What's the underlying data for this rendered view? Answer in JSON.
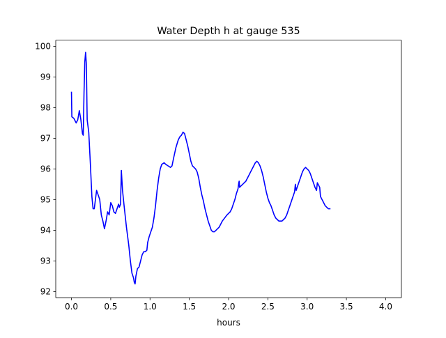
{
  "chart_data": {
    "type": "line",
    "title": "Water Depth h at gauge 535",
    "xlabel": "hours",
    "ylabel": "",
    "xlim": [
      -0.2,
      4.2
    ],
    "ylim": [
      91.8,
      100.2
    ],
    "x_ticks": [
      0.0,
      0.5,
      1.0,
      1.5,
      2.0,
      2.5,
      3.0,
      3.5,
      4.0
    ],
    "x_tick_labels": [
      "0.0",
      "0.5",
      "1.0",
      "1.5",
      "2.0",
      "2.5",
      "3.0",
      "3.5",
      "4.0"
    ],
    "y_ticks": [
      92,
      93,
      94,
      95,
      96,
      97,
      98,
      99,
      100
    ],
    "y_tick_labels": [
      "92",
      "93",
      "94",
      "95",
      "96",
      "97",
      "98",
      "99",
      "100"
    ],
    "grid": false,
    "legend": "none",
    "series": [
      {
        "color": "#0000ff",
        "points": [
          [
            0.0,
            98.5
          ],
          [
            0.005,
            97.7
          ],
          [
            0.03,
            97.65
          ],
          [
            0.06,
            97.5
          ],
          [
            0.08,
            97.6
          ],
          [
            0.1,
            97.9
          ],
          [
            0.12,
            97.6
          ],
          [
            0.14,
            97.15
          ],
          [
            0.15,
            97.1
          ],
          [
            0.16,
            98.5
          ],
          [
            0.17,
            99.5
          ],
          [
            0.18,
            99.8
          ],
          [
            0.19,
            99.4
          ],
          [
            0.2,
            97.6
          ],
          [
            0.22,
            97.2
          ],
          [
            0.24,
            96.2
          ],
          [
            0.26,
            95.1
          ],
          [
            0.275,
            94.7
          ],
          [
            0.29,
            94.7
          ],
          [
            0.31,
            95.1
          ],
          [
            0.32,
            95.3
          ],
          [
            0.34,
            95.15
          ],
          [
            0.36,
            95.0
          ],
          [
            0.38,
            94.5
          ],
          [
            0.4,
            94.3
          ],
          [
            0.42,
            94.05
          ],
          [
            0.44,
            94.3
          ],
          [
            0.46,
            94.6
          ],
          [
            0.48,
            94.5
          ],
          [
            0.5,
            94.9
          ],
          [
            0.52,
            94.8
          ],
          [
            0.54,
            94.6
          ],
          [
            0.56,
            94.55
          ],
          [
            0.58,
            94.7
          ],
          [
            0.6,
            94.85
          ],
          [
            0.61,
            94.75
          ],
          [
            0.625,
            94.85
          ],
          [
            0.635,
            95.95
          ],
          [
            0.65,
            95.3
          ],
          [
            0.67,
            94.8
          ],
          [
            0.7,
            94.1
          ],
          [
            0.73,
            93.5
          ],
          [
            0.75,
            93.0
          ],
          [
            0.77,
            92.6
          ],
          [
            0.79,
            92.45
          ],
          [
            0.8,
            92.3
          ],
          [
            0.81,
            92.25
          ],
          [
            0.82,
            92.5
          ],
          [
            0.84,
            92.75
          ],
          [
            0.86,
            92.8
          ],
          [
            0.88,
            93.0
          ],
          [
            0.9,
            93.2
          ],
          [
            0.92,
            93.3
          ],
          [
            0.94,
            93.3
          ],
          [
            0.96,
            93.35
          ],
          [
            0.97,
            93.6
          ],
          [
            0.99,
            93.8
          ],
          [
            1.01,
            93.95
          ],
          [
            1.03,
            94.1
          ],
          [
            1.05,
            94.4
          ],
          [
            1.07,
            94.8
          ],
          [
            1.09,
            95.3
          ],
          [
            1.11,
            95.7
          ],
          [
            1.13,
            96.0
          ],
          [
            1.15,
            96.15
          ],
          [
            1.18,
            96.2
          ],
          [
            1.2,
            96.15
          ],
          [
            1.23,
            96.1
          ],
          [
            1.26,
            96.05
          ],
          [
            1.28,
            96.1
          ],
          [
            1.3,
            96.35
          ],
          [
            1.33,
            96.7
          ],
          [
            1.36,
            96.95
          ],
          [
            1.38,
            97.05
          ],
          [
            1.4,
            97.1
          ],
          [
            1.42,
            97.2
          ],
          [
            1.44,
            97.15
          ],
          [
            1.46,
            96.95
          ],
          [
            1.48,
            96.75
          ],
          [
            1.5,
            96.5
          ],
          [
            1.52,
            96.25
          ],
          [
            1.54,
            96.1
          ],
          [
            1.56,
            96.05
          ],
          [
            1.58,
            96.0
          ],
          [
            1.6,
            95.9
          ],
          [
            1.62,
            95.7
          ],
          [
            1.64,
            95.4
          ],
          [
            1.66,
            95.15
          ],
          [
            1.68,
            94.95
          ],
          [
            1.7,
            94.7
          ],
          [
            1.72,
            94.5
          ],
          [
            1.74,
            94.3
          ],
          [
            1.76,
            94.15
          ],
          [
            1.78,
            94.0
          ],
          [
            1.8,
            93.95
          ],
          [
            1.82,
            93.95
          ],
          [
            1.84,
            94.0
          ],
          [
            1.86,
            94.05
          ],
          [
            1.88,
            94.1
          ],
          [
            1.9,
            94.2
          ],
          [
            1.92,
            94.3
          ],
          [
            1.95,
            94.4
          ],
          [
            1.98,
            94.5
          ],
          [
            2.0,
            94.55
          ],
          [
            2.02,
            94.6
          ],
          [
            2.04,
            94.7
          ],
          [
            2.06,
            94.85
          ],
          [
            2.08,
            95.0
          ],
          [
            2.1,
            95.2
          ],
          [
            2.12,
            95.35
          ],
          [
            2.13,
            95.55
          ],
          [
            2.135,
            95.6
          ],
          [
            2.14,
            95.4
          ],
          [
            2.16,
            95.45
          ],
          [
            2.18,
            95.5
          ],
          [
            2.2,
            95.55
          ],
          [
            2.22,
            95.6
          ],
          [
            2.24,
            95.7
          ],
          [
            2.26,
            95.8
          ],
          [
            2.28,
            95.9
          ],
          [
            2.3,
            96.0
          ],
          [
            2.32,
            96.1
          ],
          [
            2.34,
            96.2
          ],
          [
            2.36,
            96.25
          ],
          [
            2.38,
            96.2
          ],
          [
            2.4,
            96.1
          ],
          [
            2.42,
            95.95
          ],
          [
            2.44,
            95.75
          ],
          [
            2.46,
            95.5
          ],
          [
            2.48,
            95.25
          ],
          [
            2.5,
            95.05
          ],
          [
            2.52,
            94.9
          ],
          [
            2.54,
            94.8
          ],
          [
            2.56,
            94.65
          ],
          [
            2.58,
            94.5
          ],
          [
            2.6,
            94.4
          ],
          [
            2.62,
            94.35
          ],
          [
            2.64,
            94.3
          ],
          [
            2.66,
            94.3
          ],
          [
            2.68,
            94.3
          ],
          [
            2.7,
            94.35
          ],
          [
            2.72,
            94.4
          ],
          [
            2.74,
            94.5
          ],
          [
            2.76,
            94.65
          ],
          [
            2.78,
            94.8
          ],
          [
            2.8,
            94.95
          ],
          [
            2.82,
            95.1
          ],
          [
            2.84,
            95.25
          ],
          [
            2.85,
            95.5
          ],
          [
            2.86,
            95.3
          ],
          [
            2.88,
            95.45
          ],
          [
            2.9,
            95.6
          ],
          [
            2.92,
            95.75
          ],
          [
            2.94,
            95.9
          ],
          [
            2.96,
            96.0
          ],
          [
            2.98,
            96.05
          ],
          [
            3.0,
            96.0
          ],
          [
            3.02,
            95.95
          ],
          [
            3.04,
            95.85
          ],
          [
            3.06,
            95.7
          ],
          [
            3.08,
            95.55
          ],
          [
            3.1,
            95.4
          ],
          [
            3.12,
            95.3
          ],
          [
            3.13,
            95.55
          ],
          [
            3.14,
            95.5
          ],
          [
            3.15,
            95.45
          ],
          [
            3.16,
            95.4
          ],
          [
            3.17,
            95.1
          ],
          [
            3.19,
            95.0
          ],
          [
            3.21,
            94.9
          ],
          [
            3.23,
            94.8
          ],
          [
            3.25,
            94.75
          ],
          [
            3.27,
            94.7
          ],
          [
            3.29,
            94.7
          ]
        ]
      }
    ]
  }
}
